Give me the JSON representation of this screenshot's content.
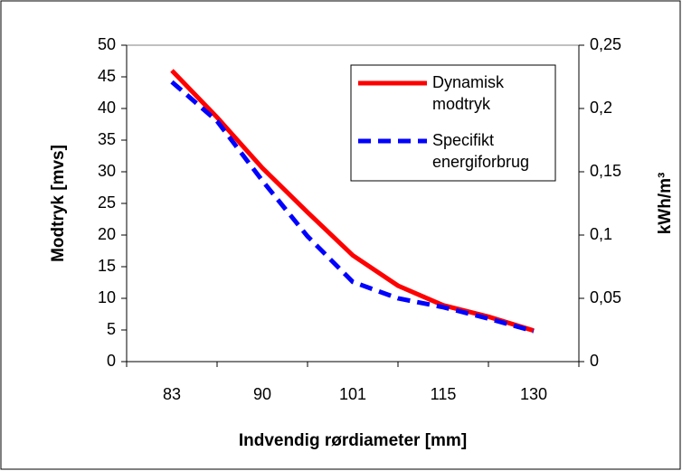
{
  "chart_data": {
    "type": "line",
    "x_label": "Indvendig rørdiameter [mm]",
    "y_label": "Modtryk [mvs]",
    "y2_label": "kWh/m³",
    "categories": [
      "83",
      null,
      "90",
      null,
      "101",
      null,
      "115",
      null,
      "130"
    ],
    "series": [
      {
        "name": "Dynamisk modtryk",
        "color": "#ff0000",
        "dash": "solid",
        "values": [
          46,
          38.6,
          30.6,
          23.6,
          16.8,
          12,
          8.9,
          7.1,
          4.9
        ]
      },
      {
        "name": "Specifikt energiforbrug",
        "color": "#0000ff",
        "dash": "dashed",
        "axis": "y2",
        "values": [
          0.221,
          0.19,
          0.143,
          0.099,
          0.063,
          0.05,
          0.043,
          0.034,
          0.024
        ]
      }
    ],
    "ylim": [
      0,
      50
    ],
    "yticks": [
      0,
      5,
      10,
      15,
      20,
      25,
      30,
      35,
      40,
      45,
      50
    ],
    "y2lim": [
      0,
      0.25
    ],
    "y2ticks": [
      {
        "value": 0,
        "label": "0"
      },
      {
        "value": 0.05,
        "label": "0,05"
      },
      {
        "value": 0.1,
        "label": "0,1"
      },
      {
        "value": 0.15,
        "label": "0,15"
      },
      {
        "value": 0.2,
        "label": "0,2"
      },
      {
        "value": 0.25,
        "label": "0,25"
      }
    ],
    "legend": "top-right"
  }
}
